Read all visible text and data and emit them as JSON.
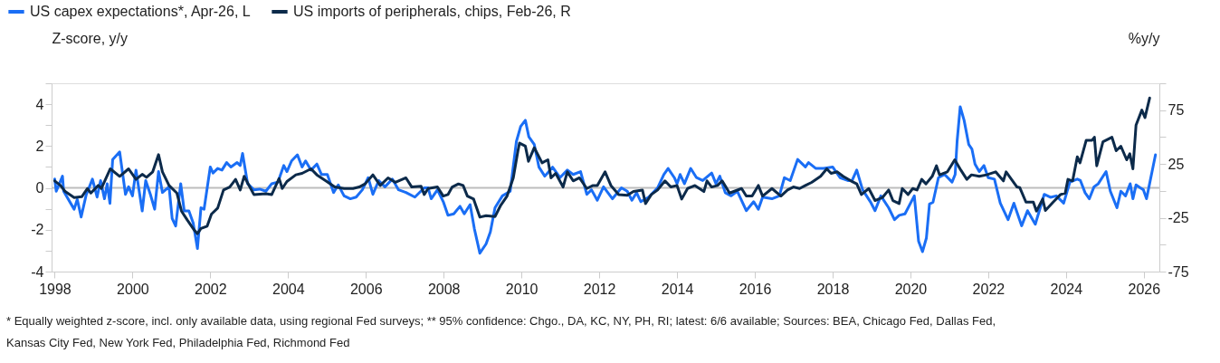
{
  "chart_data": {
    "type": "line",
    "xlim": [
      1997.92,
      2026.4
    ],
    "xticks": [
      1998,
      2000,
      2002,
      2004,
      2006,
      2008,
      2010,
      2012,
      2014,
      2016,
      2018,
      2020,
      2022,
      2024,
      2026
    ],
    "ylim": [
      -4,
      5
    ],
    "yticks": [
      -4,
      {
        "value": -3,
        "label": null
      },
      -2,
      {
        "value": -1,
        "label": null
      },
      0,
      {
        "value": 1,
        "label": null
      },
      2,
      {
        "value": 3,
        "label": null
      },
      4,
      {
        "value": 5,
        "label": null
      }
    ],
    "y2lim": [
      -75,
      100
    ],
    "y2ticks": [
      -75,
      {
        "value": -50,
        "label": null
      },
      -25,
      {
        "value": 0,
        "label": null
      },
      25,
      {
        "value": 50,
        "label": null
      },
      75,
      {
        "value": 100,
        "label": null
      }
    ],
    "ylabel": "Z-score, y/y",
    "y2label": "%y/y",
    "legend": "top left",
    "grid": false,
    "marker": "none",
    "line_style": "solid",
    "ref_lines": [
      {
        "axis": "y",
        "value": 0,
        "color": "#bdbdbd"
      }
    ],
    "annotations": [
      "* Equally weighted z-score, incl. only available data, using regional Fed surveys; ** 95% confidence: Chgo., DA, KC, NY, PH, RI; latest: 6/6 available; Sources: BEA, Chicago Fed, Dallas Fed, Kansas City Fed, New York Fed, Philadelphia Fed, Richmond Fed"
    ],
    "series": [
      {
        "name": "US capex expectations*, Apr-26, L",
        "color": "#1a6ef5",
        "axis": "y",
        "x": [
          1998.0,
          1998.04,
          1998.2,
          1998.23,
          1998.5,
          1998.58,
          1998.68,
          1998.81,
          1998.97,
          1999.09,
          1999.18,
          1999.28,
          1999.35,
          1999.42,
          1999.49,
          1999.67,
          1999.82,
          1999.9,
          2000.0,
          2000.09,
          2000.25,
          2000.34,
          2000.46,
          2000.57,
          2000.67,
          2000.77,
          2000.94,
          2001.02,
          2001.11,
          2001.24,
          2001.33,
          2001.45,
          2001.56,
          2001.67,
          2001.76,
          2001.84,
          2002.0,
          2002.07,
          2002.19,
          2002.3,
          2002.42,
          2002.53,
          2002.69,
          2002.77,
          2002.83,
          2002.96,
          2003.12,
          2003.27,
          2003.43,
          2003.58,
          2003.74,
          2003.89,
          2003.97,
          2004.09,
          2004.24,
          2004.36,
          2004.45,
          2004.59,
          2004.74,
          2004.86,
          2005.01,
          2005.17,
          2005.29,
          2005.44,
          2005.6,
          2005.75,
          2005.91,
          2006.06,
          2006.18,
          2006.33,
          2006.49,
          2006.68,
          2006.84,
          2007.03,
          2007.26,
          2007.5,
          2007.6,
          2007.68,
          2007.84,
          2007.99,
          2008.11,
          2008.26,
          2008.42,
          2008.53,
          2008.68,
          2008.79,
          2008.93,
          2009.09,
          2009.2,
          2009.32,
          2009.51,
          2009.71,
          2009.87,
          2009.98,
          2010.1,
          2010.19,
          2010.33,
          2010.45,
          2010.6,
          2010.8,
          2010.99,
          2011.18,
          2011.33,
          2011.52,
          2011.68,
          2011.8,
          2011.95,
          2012.11,
          2012.34,
          2012.57,
          2012.72,
          2012.84,
          2012.96,
          2013.07,
          2013.27,
          2013.5,
          2013.66,
          2013.77,
          2013.93,
          2014.0,
          2014.08,
          2014.19,
          2014.35,
          2014.5,
          2014.66,
          2014.89,
          2015.0,
          2015.1,
          2015.24,
          2015.39,
          2015.55,
          2015.78,
          2015.97,
          2016.09,
          2016.2,
          2016.44,
          2016.63,
          2016.76,
          2016.91,
          2017.1,
          2017.3,
          2017.38,
          2017.57,
          2017.77,
          2018.0,
          2018.19,
          2018.39,
          2018.5,
          2018.62,
          2018.77,
          2018.97,
          2019.09,
          2019.24,
          2019.44,
          2019.59,
          2019.71,
          2019.86,
          2020.1,
          2020.21,
          2020.31,
          2020.41,
          2020.49,
          2020.58,
          2020.72,
          2020.88,
          2021.07,
          2021.15,
          2021.2,
          2021.28,
          2021.38,
          2021.5,
          2021.58,
          2021.66,
          2021.77,
          2021.89,
          2022.0,
          2022.16,
          2022.31,
          2022.51,
          2022.66,
          2022.86,
          2023.01,
          2023.21,
          2023.44,
          2023.6,
          2023.75,
          2023.94,
          2024.1,
          2024.29,
          2024.37,
          2024.49,
          2024.6,
          2024.72,
          2024.83,
          2025.03,
          2025.14,
          2025.31,
          2025.41,
          2025.53,
          2025.65,
          2025.72,
          2025.8,
          2025.91,
          2025.99,
          2026.07,
          2026.3
        ],
        "values": [
          0.42,
          -0.16,
          0.56,
          -0.16,
          -1.02,
          -0.55,
          -1.39,
          -0.33,
          0.42,
          -0.44,
          0.35,
          -0.52,
          0.2,
          -0.74,
          1.35,
          1.72,
          -0.31,
          0.05,
          -0.38,
          0.85,
          -1.1,
          0.35,
          -0.31,
          -1.02,
          0.78,
          -0.22,
          0.05,
          -1.46,
          -1.82,
          0.2,
          -1.1,
          -1.1,
          -1.67,
          -2.9,
          -0.95,
          -1.02,
          1.0,
          0.71,
          0.93,
          0.85,
          1.21,
          1.0,
          1.21,
          1.07,
          1.65,
          0.2,
          -0.09,
          -0.06,
          -0.16,
          0.2,
          0.28,
          1.07,
          0.78,
          1.29,
          1.58,
          1.0,
          1.29,
          0.85,
          1.14,
          0.64,
          0.64,
          -0.22,
          0.14,
          -0.38,
          -0.52,
          -0.44,
          -0.09,
          0.49,
          -0.31,
          0.35,
          0.05,
          0.42,
          -0.09,
          -0.22,
          -0.44,
          0.0,
          0.0,
          -0.52,
          -0.09,
          -0.66,
          -1.31,
          -1.24,
          -0.88,
          -1.24,
          -0.8,
          -1.96,
          -3.12,
          -2.68,
          -2.11,
          -0.95,
          -0.38,
          -0.16,
          2.22,
          2.94,
          3.23,
          2.44,
          2.07,
          0.99,
          0.56,
          0.99,
          0.49,
          0.85,
          0.64,
          0.78,
          -0.31,
          -0.09,
          -0.59,
          0.05,
          -0.52,
          0.0,
          -0.16,
          -0.59,
          -0.23,
          -0.66,
          -0.44,
          0.0,
          0.64,
          0.93,
          0.49,
          0.2,
          0.64,
          0.2,
          0.93,
          0.49,
          0.35,
          0.71,
          0.2,
          0.56,
          -0.23,
          -0.38,
          -0.16,
          -1.09,
          -0.66,
          -1.02,
          -0.44,
          -0.52,
          -0.38,
          0.49,
          0.35,
          1.36,
          1.0,
          1.21,
          0.93,
          0.93,
          1.0,
          0.49,
          0.35,
          0.35,
          0.85,
          -0.09,
          -0.66,
          -1.09,
          -0.38,
          -0.95,
          -1.52,
          -1.31,
          -1.24,
          -0.38,
          -2.55,
          -3.05,
          -2.4,
          -0.77,
          -0.69,
          0.49,
          0.64,
          0.28,
          0.64,
          2.22,
          3.88,
          3.23,
          2.07,
          1.86,
          1.14,
          0.78,
          1.07,
          0.49,
          0.42,
          -0.73,
          -1.52,
          -0.73,
          -1.81,
          -1.09,
          -1.74,
          -0.31,
          -0.45,
          -0.38,
          -0.73,
          0.28,
          0.42,
          0.35,
          -0.23,
          -0.52,
          0.05,
          0.2,
          0.78,
          -0.16,
          -0.95,
          -0.16,
          -0.38,
          0.2,
          -0.52,
          0.14,
          0.0,
          -0.09,
          -0.52,
          1.58
        ]
      },
      {
        "name": "US imports of peripherals, chips, Feb-26, R",
        "color": "#0c2a4a",
        "axis": "y2",
        "x": [
          1998.0,
          1998.15,
          1998.27,
          1998.5,
          1998.7,
          1998.84,
          1998.93,
          1999.12,
          1999.2,
          1999.43,
          1999.67,
          1999.9,
          2000.09,
          2000.25,
          2000.36,
          2000.52,
          2000.67,
          2000.77,
          2000.94,
          2001.14,
          2001.26,
          2001.41,
          2001.57,
          2001.67,
          2001.76,
          2001.92,
          2002.03,
          2002.19,
          2002.34,
          2002.5,
          2002.65,
          2002.77,
          2002.87,
          2003.12,
          2003.43,
          2003.58,
          2003.77,
          2003.85,
          2003.97,
          2004.2,
          2004.36,
          2004.59,
          2004.74,
          2004.97,
          2005.2,
          2005.44,
          2005.67,
          2005.83,
          2005.98,
          2006.18,
          2006.37,
          2006.57,
          2006.76,
          2007.03,
          2007.18,
          2007.42,
          2007.5,
          2007.6,
          2007.84,
          2007.99,
          2008.11,
          2008.22,
          2008.38,
          2008.5,
          2008.61,
          2008.77,
          2008.93,
          2009.09,
          2009.32,
          2009.47,
          2009.63,
          2009.79,
          2009.91,
          2009.95,
          2010.1,
          2010.18,
          2010.33,
          2010.53,
          2010.68,
          2010.76,
          2010.88,
          2011.07,
          2011.18,
          2011.33,
          2011.49,
          2011.68,
          2011.84,
          2011.95,
          2012.15,
          2012.3,
          2012.5,
          2012.72,
          2012.88,
          2013.11,
          2013.19,
          2013.34,
          2013.5,
          2013.69,
          2013.84,
          2014.0,
          2014.12,
          2014.27,
          2014.46,
          2014.69,
          2014.77,
          2014.89,
          2015.04,
          2015.16,
          2015.35,
          2015.66,
          2015.78,
          2015.93,
          2016.09,
          2016.2,
          2016.44,
          2016.67,
          2016.84,
          2016.99,
          2017.15,
          2017.3,
          2017.46,
          2017.69,
          2017.85,
          2017.96,
          2018.12,
          2018.27,
          2018.47,
          2018.62,
          2018.74,
          2018.93,
          2019.09,
          2019.28,
          2019.44,
          2019.55,
          2019.71,
          2019.79,
          2019.94,
          2020.06,
          2020.17,
          2020.29,
          2020.4,
          2020.56,
          2020.67,
          2020.75,
          2020.95,
          2021.14,
          2021.3,
          2021.45,
          2021.57,
          2021.77,
          2021.96,
          2022.19,
          2022.39,
          2022.46,
          2022.74,
          2022.81,
          2022.97,
          2023.16,
          2023.24,
          2023.4,
          2023.47,
          2023.67,
          2023.86,
          2023.98,
          2024.05,
          2024.17,
          2024.29,
          2024.36,
          2024.52,
          2024.67,
          2024.73,
          2024.79,
          2024.95,
          2025.18,
          2025.29,
          2025.41,
          2025.56,
          2025.64,
          2025.72,
          2025.8,
          2025.95,
          2026.03,
          2026.15
        ],
        "values": [
          9.3,
          5.0,
          -0.6,
          -6.2,
          -5.3,
          2.2,
          -2.0,
          5.0,
          2.2,
          20.5,
          13.5,
          20.5,
          10.7,
          15.4,
          12.6,
          17.7,
          33.7,
          17.7,
          5.0,
          -2.0,
          -18.8,
          -27.2,
          -35.6,
          -39.8,
          -35.0,
          -32.8,
          -21.6,
          -16.0,
          0.8,
          3.6,
          10.7,
          0.8,
          13.5,
          -3.4,
          -2.6,
          -3.4,
          11.5,
          2.2,
          8.7,
          14.9,
          16.3,
          20.5,
          14.9,
          9.3,
          3.6,
          2.2,
          2.2,
          3.6,
          6.5,
          14.9,
          5.0,
          12.1,
          7.9,
          12.1,
          3.6,
          4.2,
          -3.4,
          2.2,
          3.6,
          -4.8,
          -3.4,
          3.6,
          6.5,
          5.0,
          -4.8,
          -7.6,
          -24.4,
          -23.0,
          -23.9,
          -13.2,
          -4.8,
          12.1,
          37.3,
          44.4,
          41.6,
          27.5,
          40.1,
          26.1,
          28.9,
          12.1,
          16.3,
          3.6,
          17.7,
          9.3,
          12.1,
          2.2,
          5.0,
          5.0,
          17.7,
          5.0,
          -3.4,
          -4.2,
          -0.6,
          0.8,
          -11.8,
          -3.4,
          0.8,
          9.3,
          3.6,
          5.0,
          -7.6,
          2.2,
          5.0,
          -0.6,
          9.3,
          3.6,
          5.0,
          9.3,
          -2.0,
          2.2,
          -4.8,
          -4.8,
          5.0,
          -4.8,
          2.2,
          -4.8,
          0.8,
          3.6,
          2.2,
          5.0,
          7.9,
          13.5,
          20.5,
          16.3,
          17.7,
          13.5,
          9.3,
          6.5,
          -3.4,
          2.2,
          -9.0,
          -6.2,
          0.8,
          -9.0,
          -11.8,
          2.2,
          -3.4,
          2.2,
          0.8,
          10.7,
          6.5,
          13.5,
          23.3,
          14.9,
          17.7,
          28.9,
          19.1,
          10.7,
          14.9,
          13.5,
          14.9,
          17.7,
          9.3,
          17.7,
          3.6,
          3.1,
          -10.4,
          -10.4,
          -18.8,
          -7.6,
          -18.2,
          -10.4,
          -3.4,
          -2.0,
          10.7,
          9.3,
          31.7,
          26.1,
          47.1,
          47.1,
          49.9,
          23.3,
          45.7,
          49.9,
          37.3,
          41.5,
          28.9,
          34.5,
          20.5,
          61.1,
          75.1,
          68.1,
          86.3
        ]
      }
    ]
  }
}
